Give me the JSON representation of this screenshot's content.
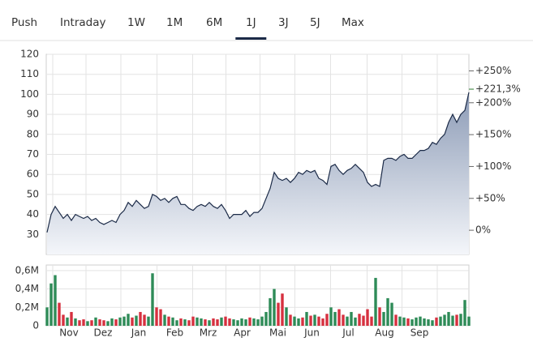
{
  "tabs": [
    "Push",
    "Intraday",
    "1W",
    "1M",
    "6M",
    "1J",
    "3J",
    "5J",
    "Max"
  ],
  "active_tab": 5,
  "chart_data": [
    {
      "type": "line",
      "fill": true,
      "color": "#1b2a47",
      "values": [
        31,
        40,
        44,
        41,
        38,
        40,
        37,
        40,
        39,
        38,
        39,
        37,
        38,
        36,
        35,
        36,
        37,
        36,
        40,
        42,
        46,
        44,
        47,
        45,
        43,
        44,
        50,
        49,
        47,
        48,
        46,
        48,
        49,
        45,
        45,
        43,
        42,
        44,
        45,
        44,
        46,
        44,
        43,
        45,
        42,
        38,
        40,
        40,
        40,
        42,
        39,
        41,
        41,
        43,
        48,
        53,
        61,
        58,
        57,
        58,
        56,
        58,
        61,
        60,
        62,
        61,
        62,
        58,
        57,
        55,
        64,
        65,
        62,
        60,
        62,
        63,
        65,
        63,
        61,
        56,
        54,
        55,
        54,
        67,
        68,
        68,
        67,
        69,
        70,
        68,
        68,
        70,
        72,
        72,
        73,
        76,
        75,
        78,
        80,
        86,
        90,
        86,
        90,
        92,
        101
      ],
      "xlim": [
        0,
        104
      ],
      "xgrid": [
        1.4,
        9.6,
        18.2,
        27.1,
        35.9,
        44.1,
        52.5,
        61.1,
        69.9,
        78.9,
        87.5,
        96.2
      ],
      "ylim": [
        20,
        120
      ],
      "yticks": [
        30,
        40,
        50,
        60,
        70,
        80,
        90,
        100,
        110,
        120
      ],
      "y2lim": [
        -38,
        276
      ],
      "y2ticks": [
        {
          "value": 0,
          "label": "0%"
        },
        {
          "value": 50,
          "label": "+50%"
        },
        {
          "value": 100,
          "label": "+100%"
        },
        {
          "value": 150,
          "label": "+150%"
        },
        {
          "value": 200,
          "label": "+200%"
        },
        {
          "value": 250,
          "label": "+250%"
        }
      ],
      "annotation": {
        "value": 221.3,
        "label": "+221,3%",
        "color": "#2e7d32"
      },
      "grid": true
    },
    {
      "type": "bar",
      "up_color": "#2e8b57",
      "down_color": "#d6303f",
      "values": [
        200000,
        460000,
        550000,
        250000,
        120000,
        90000,
        150000,
        80000,
        60000,
        70000,
        50000,
        60000,
        90000,
        70000,
        60000,
        50000,
        80000,
        70000,
        90000,
        100000,
        130000,
        90000,
        110000,
        150000,
        120000,
        100000,
        570000,
        200000,
        180000,
        120000,
        100000,
        90000,
        60000,
        80000,
        70000,
        60000,
        100000,
        90000,
        80000,
        70000,
        60000,
        80000,
        70000,
        90000,
        100000,
        80000,
        70000,
        60000,
        80000,
        70000,
        90000,
        80000,
        70000,
        100000,
        150000,
        300000,
        400000,
        250000,
        350000,
        200000,
        120000,
        100000,
        80000,
        90000,
        150000,
        110000,
        120000,
        100000,
        80000,
        130000,
        200000,
        150000,
        180000,
        120000,
        100000,
        150000,
        90000,
        130000,
        110000,
        180000,
        100000,
        520000,
        200000,
        150000,
        300000,
        250000,
        120000,
        100000,
        90000,
        80000,
        70000,
        90000,
        100000,
        80000,
        70000,
        60000,
        90000,
        100000,
        120000,
        150000,
        110000,
        120000,
        130000,
        280000,
        100000
      ],
      "xlim": [
        0,
        104
      ],
      "xgrid": [
        1.4,
        9.6,
        18.2,
        27.1,
        35.9,
        44.1,
        52.5,
        61.1,
        69.9,
        78.9,
        87.5,
        96.2
      ],
      "xticks": [
        {
          "value": 5.4,
          "label": "Nov"
        },
        {
          "value": 13.8,
          "label": "Dez"
        },
        {
          "value": 22.6,
          "label": "Jan"
        },
        {
          "value": 31.5,
          "label": "Feb"
        },
        {
          "value": 39.7,
          "label": "Mrz"
        },
        {
          "value": 48.1,
          "label": "Apr"
        },
        {
          "value": 56.9,
          "label": "Mai"
        },
        {
          "value": 65.3,
          "label": "Jun"
        },
        {
          "value": 74.3,
          "label": "Jul"
        },
        {
          "value": 83.2,
          "label": "Aug"
        },
        {
          "value": 91.8,
          "label": "Sep"
        }
      ],
      "ylim": [
        0,
        660000
      ],
      "yticks": [
        0,
        {
          "value": 200000,
          "label": "0,2M"
        },
        {
          "value": 400000,
          "label": "0,4M"
        },
        {
          "value": 600000,
          "label": "0,6M"
        }
      ],
      "grid": true
    }
  ]
}
